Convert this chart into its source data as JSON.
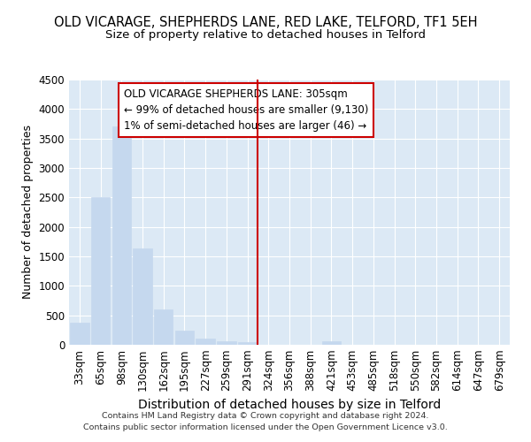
{
  "title": "OLD VICARAGE, SHEPHERDS LANE, RED LAKE, TELFORD, TF1 5EH",
  "subtitle": "Size of property relative to detached houses in Telford",
  "xlabel": "Distribution of detached houses by size in Telford",
  "ylabel": "Number of detached properties",
  "footer_line1": "Contains HM Land Registry data © Crown copyright and database right 2024.",
  "footer_line2": "Contains public sector information licensed under the Open Government Licence v3.0.",
  "annotation_title": "OLD VICARAGE SHEPHERDS LANE: 305sqm",
  "annotation_line2": "← 99% of detached houses are smaller (9,130)",
  "annotation_line3": "1% of semi-detached houses are larger (46) →",
  "categories": [
    "33sqm",
    "65sqm",
    "98sqm",
    "130sqm",
    "162sqm",
    "195sqm",
    "227sqm",
    "259sqm",
    "291sqm",
    "324sqm",
    "356sqm",
    "388sqm",
    "421sqm",
    "453sqm",
    "485sqm",
    "518sqm",
    "550sqm",
    "582sqm",
    "614sqm",
    "647sqm",
    "679sqm"
  ],
  "values": [
    380,
    2510,
    3700,
    1630,
    600,
    245,
    110,
    55,
    40,
    0,
    0,
    0,
    55,
    0,
    0,
    0,
    0,
    0,
    0,
    0,
    0
  ],
  "bar_color": "#c5d8ee",
  "bar_edge_color": "#c5d8ee",
  "vline_x": 8.5,
  "vline_color": "#cc0000",
  "ylim": [
    0,
    4500
  ],
  "yticks": [
    0,
    500,
    1000,
    1500,
    2000,
    2500,
    3000,
    3500,
    4000,
    4500
  ],
  "bg_color": "#dce9f5",
  "grid_color": "#ffffff",
  "title_fontsize": 10.5,
  "subtitle_fontsize": 9.5,
  "xlabel_fontsize": 10,
  "ylabel_fontsize": 9,
  "tick_fontsize": 8.5,
  "footer_fontsize": 6.8,
  "ann_fontsize": 8.5
}
